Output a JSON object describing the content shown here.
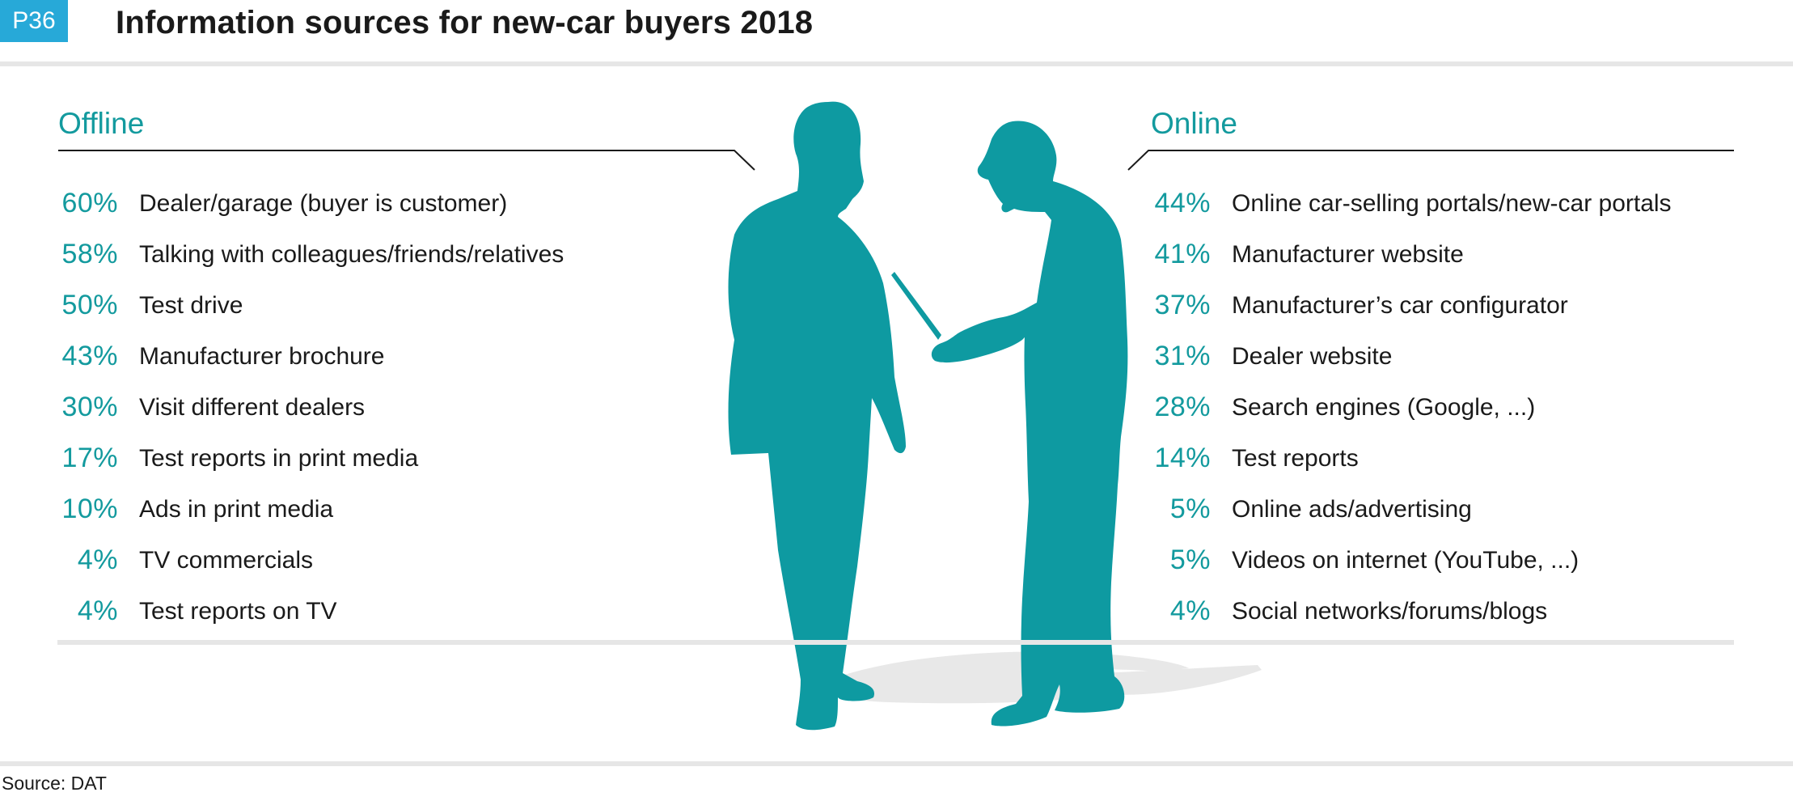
{
  "header": {
    "badge": "P36",
    "title": "Information sources for new-car buyers 2018"
  },
  "colors": {
    "accent": "#139a9e",
    "silhouette": "#0e9aa1",
    "badge": "#27a9d8",
    "rule": "#e6e6e6"
  },
  "offline": {
    "title": "Offline",
    "items": [
      {
        "pct": "60%",
        "label": "Dealer/garage (buyer is customer)"
      },
      {
        "pct": "58%",
        "label": "Talking with colleagues/friends/relatives"
      },
      {
        "pct": "50%",
        "label": "Test drive"
      },
      {
        "pct": "43%",
        "label": "Manufacturer brochure"
      },
      {
        "pct": "30%",
        "label": "Visit different dealers"
      },
      {
        "pct": "17%",
        "label": "Test reports in print media"
      },
      {
        "pct": "10%",
        "label": "Ads in print media"
      },
      {
        "pct": "4%",
        "label": "TV commercials"
      },
      {
        "pct": "4%",
        "label": "Test reports on TV"
      }
    ]
  },
  "online": {
    "title": "Online",
    "items": [
      {
        "pct": "44%",
        "label": "Online car-selling portals/new-car portals"
      },
      {
        "pct": "41%",
        "label": "Manufacturer website"
      },
      {
        "pct": "37%",
        "label": "Manufacturer’s car configurator"
      },
      {
        "pct": "31%",
        "label": "Dealer website"
      },
      {
        "pct": "28%",
        "label": "Search engines (Google, ...)"
      },
      {
        "pct": "14%",
        "label": "Test reports"
      },
      {
        "pct": "5%",
        "label": "Online ads/advertising"
      },
      {
        "pct": "5%",
        "label": "Videos on internet (YouTube, ...)"
      },
      {
        "pct": "4%",
        "label": "Social networks/forums/blogs"
      }
    ]
  },
  "illustration": {
    "icons": [
      "standing-man-silhouette-icon",
      "man-with-tablet-silhouette-icon",
      "floor-shadow-icon"
    ]
  },
  "footer": {
    "source": "Source: DAT"
  }
}
